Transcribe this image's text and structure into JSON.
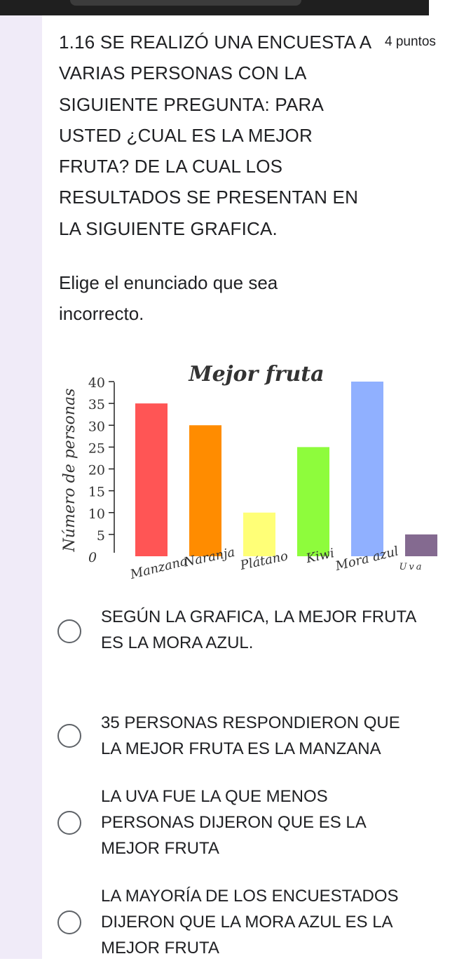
{
  "question": {
    "title": "1.16 SE REALIZÓ UNA ENCUESTA A VARIAS PERSONAS CON LA SIGUIENTE PREGUNTA:  PARA USTED ¿CUAL ES LA MEJOR FRUTA? DE LA CUAL LOS RESULTADOS SE PRESENTAN EN LA SIGUIENTE GRAFICA.",
    "points": "4 puntos",
    "instruction": "Elige el enunciado que sea incorrecto."
  },
  "chart_data": {
    "type": "bar",
    "title": "Mejor fruta",
    "ylabel": "Número de personas",
    "xlabel": "",
    "categories": [
      "Manzana",
      "Naranja",
      "Plátano",
      "Kiwi",
      "Mora azul",
      "Uva"
    ],
    "values": [
      35,
      30,
      10,
      25,
      40,
      5
    ],
    "colors": [
      "#ff5555",
      "#ff8c00",
      "#ffff77",
      "#8efc3c",
      "#90b0ff",
      "#846a90"
    ],
    "yticks": [
      0,
      5,
      10,
      15,
      20,
      25,
      30,
      35,
      40
    ],
    "ylim": [
      0,
      40
    ],
    "grid": false
  },
  "options": [
    {
      "label": "SEGÚN LA GRAFICA, LA MEJOR FRUTA\nES LA MORA AZUL."
    },
    {
      "label": "35 PERSONAS RESPONDIERON QUE\nLA MEJOR FRUTA ES LA MANZANA"
    },
    {
      "label": "LA UVA FUE LA QUE MENOS\nPERSONAS DIJERON QUE ES LA\nMEJOR FRUTA"
    },
    {
      "label": "LA MAYORÍA DE LOS ENCUESTADOS\nDIJERON QUE LA MORA AZUL ES LA\nMEJOR FRUTA"
    }
  ]
}
